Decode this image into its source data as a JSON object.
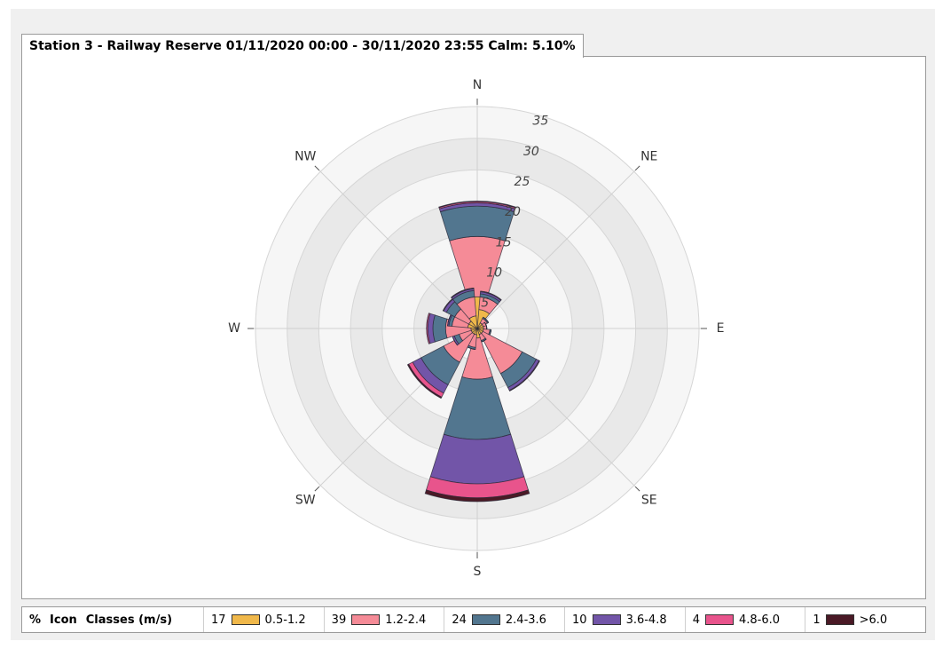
{
  "chart_data": {
    "type": "windrose",
    "title": "Station 3 - Railway Reserve 01/11/2020 00:00 - 30/11/2020 23:55 Calm: 5.10%",
    "categories": [
      "N",
      null,
      "NE",
      null,
      "E",
      null,
      "SE",
      null,
      "S",
      null,
      "SW",
      null,
      "W",
      null,
      "NW",
      null
    ],
    "rlim": [
      0,
      35
    ],
    "rticks": [
      5,
      10,
      15,
      20,
      25,
      30,
      35
    ],
    "legend_headers": [
      "%",
      "Icon",
      "Classes (m/s)"
    ],
    "series": [
      {
        "name": "0.5-1.2",
        "color": "#f0b84a",
        "percent": 17,
        "values": [
          5,
          3,
          1,
          1,
          1,
          1,
          1,
          1,
          1.5,
          1,
          1,
          1,
          1,
          1.5,
          1.5,
          2
        ]
      },
      {
        "name": "1.2-2.4",
        "color": "#f58b97",
        "percent": 39,
        "values": [
          9.5,
          2,
          0.8,
          0.5,
          0.5,
          1,
          7,
          1,
          6.5,
          2,
          5,
          2,
          4,
          2.5,
          2.5,
          3
        ]
      },
      {
        "name": "2.4-3.6",
        "color": "#52768f",
        "percent": 24,
        "values": [
          4.8,
          0.5,
          0.2,
          0,
          0,
          0.2,
          2.5,
          0.2,
          9.5,
          0.3,
          4,
          0.8,
          2,
          0.5,
          1.5,
          1
        ]
      },
      {
        "name": "3.6-4.8",
        "color": "#7255a8",
        "percent": 10,
        "values": [
          0.5,
          0.3,
          0,
          0,
          0,
          0,
          0.5,
          0,
          7,
          0,
          1.5,
          0.3,
          0.8,
          0.2,
          0.5,
          0.3
        ]
      },
      {
        "name": "4.8-6.0",
        "color": "#e8548c",
        "percent": 4,
        "values": [
          0.2,
          0.1,
          0,
          0,
          0,
          0,
          0.1,
          0,
          2.2,
          0,
          0.7,
          0,
          0.2,
          0,
          0.1,
          0.1
        ]
      },
      {
        "name": ">6.0",
        "color": "#4a1a26",
        "percent": 1,
        "values": [
          0.1,
          0,
          0,
          0,
          0,
          0,
          0,
          0,
          0.6,
          0,
          0.2,
          0,
          0,
          0,
          0,
          0
        ]
      }
    ]
  }
}
